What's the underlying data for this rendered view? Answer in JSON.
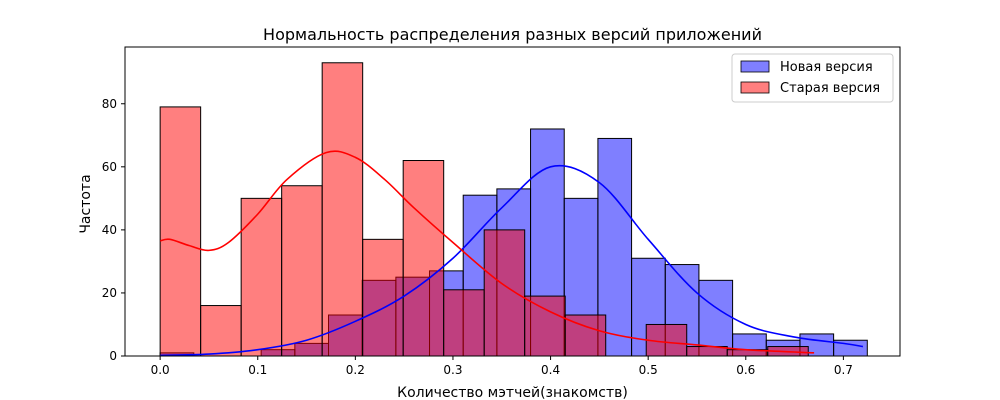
{
  "chart_data": {
    "type": "histogram",
    "title": "Нормальность распределения разных версий приложений",
    "xlabel": "Количество мэтчей(знакомств)",
    "ylabel": "Частота",
    "xlim": [
      -0.036,
      0.758
    ],
    "ylim": [
      0,
      98
    ],
    "xticks": [
      0.0,
      0.1,
      0.2,
      0.3,
      0.4,
      0.5,
      0.6,
      0.7
    ],
    "yticks": [
      0,
      20,
      40,
      60,
      80
    ],
    "grid": false,
    "legend_position": "top-right",
    "series": [
      {
        "name": "Новая версия",
        "color": "#0000ff",
        "bin_start": 0.0,
        "bin_width": 0.0345,
        "counts": [
          1,
          0,
          0,
          2,
          4,
          13,
          24,
          25,
          27,
          51,
          53,
          72,
          50,
          69,
          31,
          29,
          24,
          7,
          5,
          7,
          5
        ],
        "kde": [
          [
            0.0,
            0.2
          ],
          [
            0.05,
            0.6
          ],
          [
            0.1,
            2
          ],
          [
            0.15,
            5
          ],
          [
            0.2,
            11
          ],
          [
            0.25,
            19
          ],
          [
            0.3,
            31
          ],
          [
            0.35,
            47
          ],
          [
            0.4,
            60
          ],
          [
            0.45,
            55
          ],
          [
            0.5,
            37
          ],
          [
            0.55,
            20
          ],
          [
            0.6,
            10
          ],
          [
            0.65,
            6
          ],
          [
            0.7,
            4
          ],
          [
            0.72,
            3
          ]
        ]
      },
      {
        "name": "Старая версия",
        "color": "#ff0000",
        "bin_start": 0.0,
        "bin_width": 0.0415,
        "counts": [
          79,
          16,
          50,
          54,
          93,
          37,
          62,
          21,
          40,
          19,
          13,
          0,
          10,
          3,
          2,
          3
        ],
        "kde": [
          [
            0.0,
            36.5
          ],
          [
            0.01,
            37
          ],
          [
            0.03,
            35
          ],
          [
            0.05,
            33.5
          ],
          [
            0.07,
            36
          ],
          [
            0.1,
            45
          ],
          [
            0.13,
            56
          ],
          [
            0.17,
            64.5
          ],
          [
            0.2,
            63
          ],
          [
            0.23,
            56
          ],
          [
            0.26,
            47
          ],
          [
            0.3,
            36
          ],
          [
            0.35,
            23
          ],
          [
            0.4,
            14
          ],
          [
            0.45,
            8
          ],
          [
            0.5,
            5
          ],
          [
            0.55,
            3.5
          ],
          [
            0.6,
            2
          ],
          [
            0.67,
            1
          ]
        ]
      }
    ]
  }
}
